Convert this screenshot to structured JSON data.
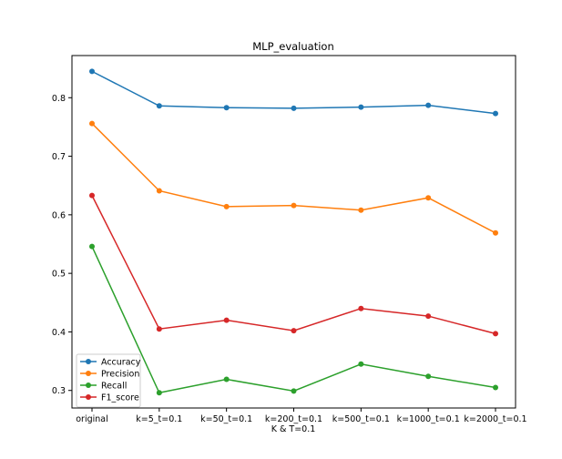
{
  "chart_data": {
    "type": "line",
    "title": "MLP_evaluation",
    "xlabel": "K & T=0.1",
    "ylabel": "",
    "categories": [
      "original",
      "k=5_t=0.1",
      "k=50_t=0.1",
      "k=200_t=0.1",
      "k=500_t=0.1",
      "k=1000_t=0.1",
      "k=2000_t=0.1"
    ],
    "ylim": [
      0.27,
      0.872
    ],
    "yticks": [
      0.3,
      0.4,
      0.5,
      0.6,
      0.7,
      0.8
    ],
    "ytick_labels": [
      "0.3",
      "0.4",
      "0.5",
      "0.6",
      "0.7",
      "0.8"
    ],
    "grid": false,
    "legend_position": "lower-left",
    "series": [
      {
        "name": "Accuracy",
        "color": "#1f77b4",
        "values": [
          0.845,
          0.786,
          0.783,
          0.782,
          0.784,
          0.787,
          0.773
        ]
      },
      {
        "name": "Precision",
        "color": "#ff7f0e",
        "values": [
          0.756,
          0.641,
          0.614,
          0.616,
          0.608,
          0.629,
          0.569
        ]
      },
      {
        "name": "Recall",
        "color": "#2ca02c",
        "values": [
          0.546,
          0.296,
          0.319,
          0.299,
          0.345,
          0.324,
          0.305
        ]
      },
      {
        "name": "F1_score",
        "color": "#d62728",
        "values": [
          0.633,
          0.405,
          0.42,
          0.402,
          0.44,
          0.427,
          0.397
        ]
      }
    ]
  }
}
